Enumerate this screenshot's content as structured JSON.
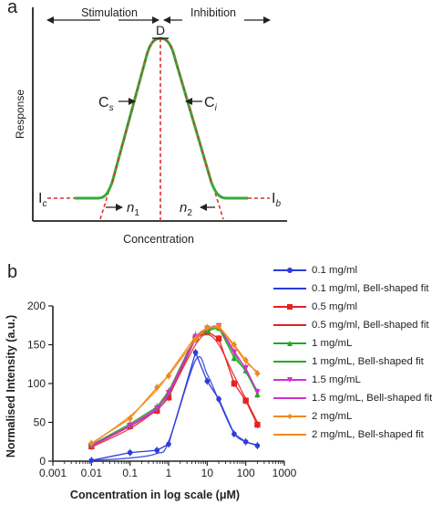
{
  "panel_a": {
    "letter": "a",
    "ylabel": "Response",
    "xlabel": "Concentration",
    "stimulation": "Stimulation",
    "inhibition": "Inhibition",
    "peak": "D",
    "left_slope": "C",
    "left_slope_sub": "s",
    "right_slope": "C",
    "right_slope_sub": "i",
    "left_baseline": "I",
    "left_baseline_sub": "c",
    "right_baseline": "I",
    "right_baseline_sub": "b",
    "left_hill": "n",
    "left_hill_sub": "1",
    "right_hill": "n",
    "right_hill_sub": "2",
    "colors": {
      "curve": "#3aa83a",
      "dashed": "#e03030",
      "axis": "#222222"
    }
  },
  "panel_b": {
    "letter": "b"
  },
  "chart_data": {
    "type": "line",
    "xlabel": "Concentration in log scale (μM)",
    "ylabel": "Normalised Intensity (a.u.)",
    "xscale": "log",
    "xlim": [
      0.001,
      1000
    ],
    "ylim": [
      0,
      200
    ],
    "xticks": [
      "0.001",
      "0.01",
      "0.1",
      "1",
      "10",
      "100",
      "1000"
    ],
    "yticks": [
      "0",
      "50",
      "100",
      "150",
      "200"
    ],
    "legend_position": "right",
    "grid": false,
    "x": [
      0.01,
      0.1,
      0.5,
      1,
      5,
      10,
      20,
      50,
      100,
      200
    ],
    "series": [
      {
        "name": "0.1 mg/ml",
        "color": "#2b3cdb",
        "marker": "circle",
        "values": [
          1,
          11,
          14,
          22,
          140,
          103,
          80,
          35,
          25,
          20
        ],
        "fit_name": "0.1 mg/ml, Bell-shaped fit",
        "fit_values": [
          1,
          4,
          10,
          25,
          130,
          112,
          78,
          36,
          25,
          21
        ]
      },
      {
        "name": "0.5 mg/ml",
        "color": "#e52222",
        "marker": "square",
        "values": [
          19,
          45,
          65,
          82,
          158,
          167,
          158,
          100,
          78,
          47
        ],
        "fit_name": "0.5 mg/ml, Bell-shaped fit",
        "fit_values": [
          18,
          42,
          67,
          85,
          150,
          163,
          150,
          110,
          80,
          50
        ]
      },
      {
        "name": "1 mg/mL",
        "color": "#22aa22",
        "marker": "triangle-up",
        "values": [
          21,
          48,
          70,
          90,
          162,
          168,
          172,
          133,
          117,
          86
        ],
        "fit_name": "1 mg/mL, Bell-shaped fit",
        "fit_values": [
          20,
          46,
          68,
          88,
          158,
          168,
          170,
          138,
          115,
          88
        ]
      },
      {
        "name": "1.5 mg/mL",
        "color": "#cc33cc",
        "marker": "triangle-down",
        "values": [
          20,
          46,
          68,
          88,
          160,
          171,
          174,
          140,
          120,
          89
        ],
        "fit_name": "1.5 mg/mL, Bell-shaped fit",
        "fit_values": [
          19,
          45,
          67,
          86,
          157,
          170,
          172,
          142,
          118,
          90
        ]
      },
      {
        "name": "2 mg/mL",
        "color": "#f08a1c",
        "marker": "diamond",
        "values": [
          23,
          55,
          95,
          110,
          157,
          172,
          174,
          150,
          130,
          113
        ],
        "fit_name": "2 mg/mL, Bell-shaped fit",
        "fit_values": [
          22,
          58,
          92,
          112,
          160,
          170,
          171,
          148,
          128,
          115
        ]
      }
    ]
  }
}
